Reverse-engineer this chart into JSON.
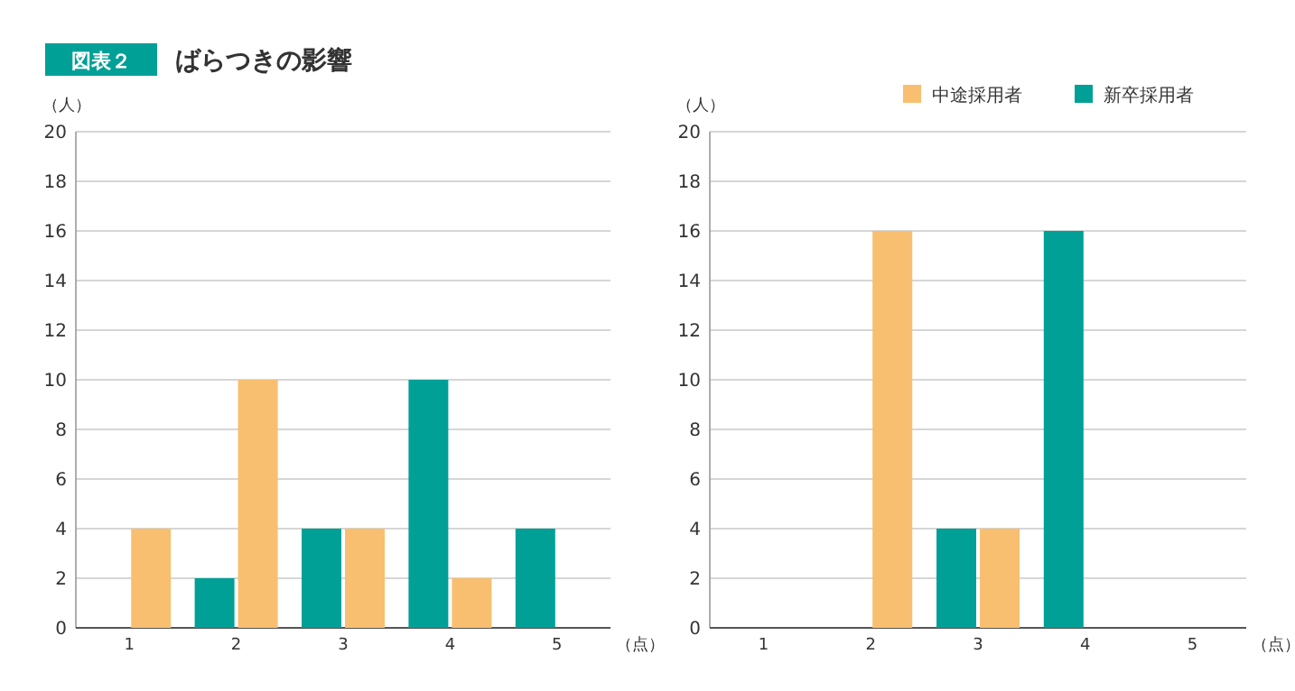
{
  "chart_data": [
    {
      "type": "bar",
      "title": "ばらつきの影響",
      "annotations": [
        "図表２"
      ],
      "ylabel": "（人）",
      "xlabel": "（点）",
      "categories": [
        "1",
        "2",
        "3",
        "4",
        "5"
      ],
      "series": [
        {
          "color": "#00a097",
          "values": [
            0,
            2,
            4,
            10,
            4
          ]
        },
        {
          "color": "#f8bf70",
          "values": [
            4,
            10,
            4,
            2,
            0
          ]
        }
      ],
      "ylim": [
        0,
        20
      ],
      "yticks": [
        0,
        2,
        4,
        6,
        8,
        10,
        12,
        14,
        16,
        18,
        20
      ],
      "grid": "y",
      "legend": false
    },
    {
      "type": "bar",
      "ylabel": "（人）",
      "xlabel": "（点）",
      "categories": [
        "1",
        "2",
        "3",
        "4",
        "5"
      ],
      "series": [
        {
          "name": "新卒採用者",
          "color": "#00a097",
          "values": [
            0,
            0,
            4,
            16,
            0
          ]
        },
        {
          "name": "中途採用者",
          "color": "#f8bf70",
          "values": [
            0,
            16,
            4,
            0,
            0
          ]
        }
      ],
      "ylim": [
        0,
        20
      ],
      "yticks": [
        0,
        2,
        4,
        6,
        8,
        10,
        12,
        14,
        16,
        18,
        20
      ],
      "grid": "y",
      "legend": "top right"
    }
  ]
}
